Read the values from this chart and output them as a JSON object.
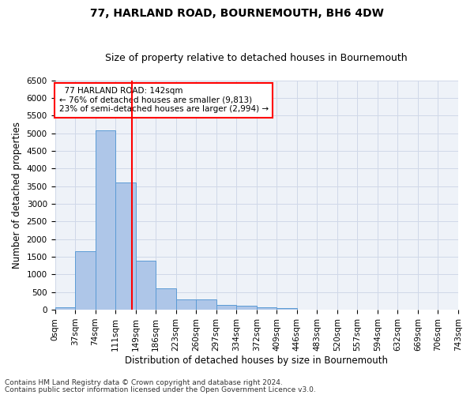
{
  "title": "77, HARLAND ROAD, BOURNEMOUTH, BH6 4DW",
  "subtitle": "Size of property relative to detached houses in Bournemouth",
  "xlabel": "Distribution of detached houses by size in Bournemouth",
  "ylabel": "Number of detached properties",
  "footnote1": "Contains HM Land Registry data © Crown copyright and database right 2024.",
  "footnote2": "Contains public sector information licensed under the Open Government Licence v3.0.",
  "annotation_line1": "  77 HARLAND ROAD: 142sqm",
  "annotation_line2": "← 76% of detached houses are smaller (9,813)",
  "annotation_line3": "23% of semi-detached houses are larger (2,994) →",
  "bar_values": [
    75,
    1650,
    5070,
    3600,
    1400,
    610,
    290,
    290,
    140,
    110,
    80,
    55,
    0,
    0,
    0,
    0,
    0,
    0,
    0,
    0
  ],
  "bin_labels": [
    "0sqm",
    "37sqm",
    "74sqm",
    "111sqm",
    "149sqm",
    "186sqm",
    "223sqm",
    "260sqm",
    "297sqm",
    "334sqm",
    "372sqm",
    "409sqm",
    "446sqm",
    "483sqm",
    "520sqm",
    "557sqm",
    "594sqm",
    "632sqm",
    "669sqm",
    "706sqm",
    "743sqm"
  ],
  "n_bars": 20,
  "bar_color": "#aec6e8",
  "bar_edge_color": "#5b9bd5",
  "vline_color": "red",
  "ylim": [
    0,
    6500
  ],
  "yticks": [
    0,
    500,
    1000,
    1500,
    2000,
    2500,
    3000,
    3500,
    4000,
    4500,
    5000,
    5500,
    6000,
    6500
  ],
  "grid_color": "#d0d8e8",
  "bg_color": "#eef2f8",
  "title_fontsize": 10,
  "subtitle_fontsize": 9,
  "axis_label_fontsize": 8.5,
  "tick_fontsize": 7.5,
  "annotation_fontsize": 7.5,
  "footnote_fontsize": 6.5
}
